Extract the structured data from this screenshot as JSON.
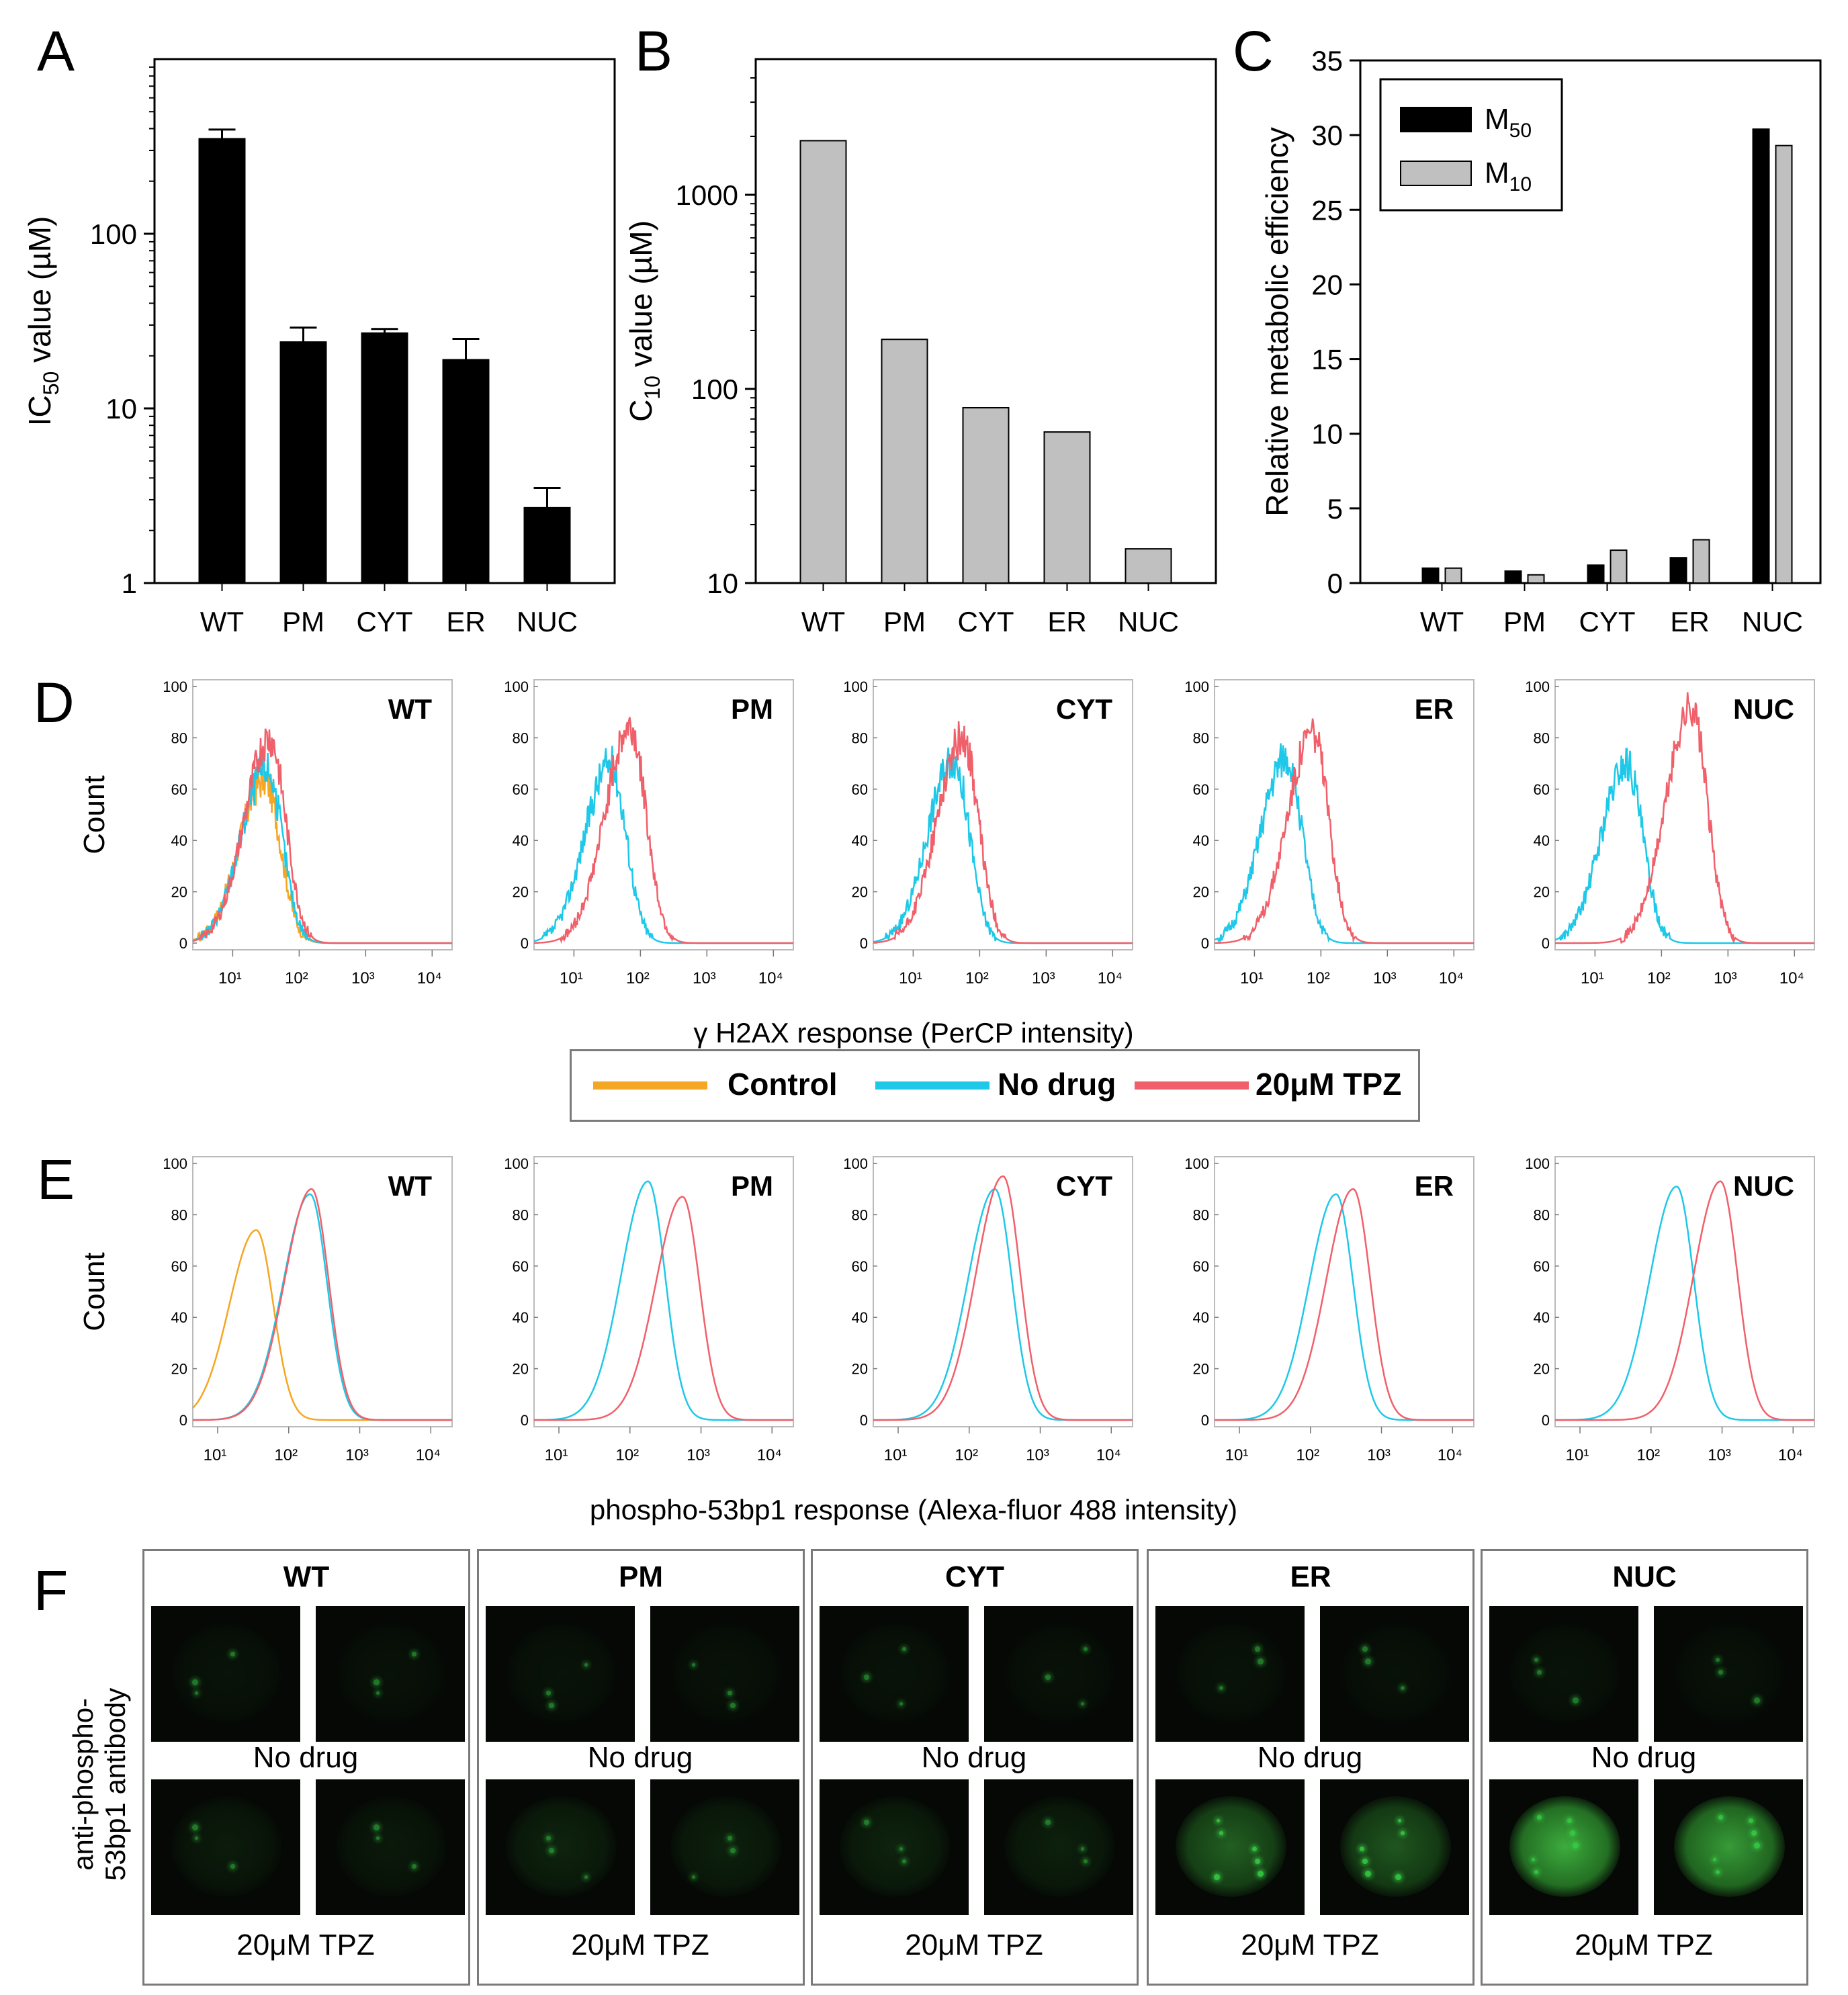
{
  "panel_letters": [
    "A",
    "B",
    "C",
    "D",
    "E",
    "F"
  ],
  "chart_data": [
    {
      "id": "A",
      "type": "bar",
      "ylog": true,
      "categories": [
        "WT",
        "PM",
        "CYT",
        "ER",
        "NUC"
      ],
      "values": [
        350,
        24,
        27,
        19,
        2.7
      ],
      "errors": [
        45,
        5,
        1.5,
        6,
        0.8
      ],
      "ylabel": "IC50 value (µM)",
      "ylim": [
        1,
        1000
      ],
      "yticks": [
        1,
        10,
        100
      ],
      "ytick_labels": [
        "1",
        "10",
        "100"
      ],
      "bar_color": "#000000"
    },
    {
      "id": "B",
      "type": "bar",
      "ylog": true,
      "categories": [
        "WT",
        "PM",
        "CYT",
        "ER",
        "NUC"
      ],
      "values": [
        1900,
        180,
        80,
        60,
        15
      ],
      "ylabel": "C10 value (µM)",
      "ylim": [
        10,
        5000
      ],
      "yticks": [
        10,
        100,
        1000
      ],
      "ytick_labels": [
        "10",
        "100",
        "1000"
      ],
      "bar_color": "#c0c0c0"
    },
    {
      "id": "C",
      "type": "bar",
      "categories": [
        "WT",
        "PM",
        "CYT",
        "ER",
        "NUC"
      ],
      "series": [
        {
          "name": "M50",
          "color": "#000000",
          "values": [
            1.0,
            0.8,
            1.2,
            1.7,
            30.4
          ]
        },
        {
          "name": "M10",
          "color": "#c0c0c0",
          "values": [
            1.0,
            0.55,
            2.2,
            2.9,
            29.3
          ]
        }
      ],
      "ylabel": "Relative metabolic efficiency",
      "ylim": [
        0,
        35
      ],
      "yticks": [
        0,
        5,
        10,
        15,
        20,
        25,
        30,
        35
      ],
      "ytick_labels": [
        "0",
        "5",
        "10",
        "15",
        "20",
        "25",
        "30",
        "35"
      ],
      "legend_position": "top-left"
    },
    {
      "id": "D",
      "type": "line",
      "xlog": true,
      "xlabel": "γ H2AX response (PerCP intensity)",
      "ylabel": "Count",
      "panels": [
        "WT",
        "PM",
        "CYT",
        "ER",
        "NUC"
      ],
      "ylim": [
        0,
        100
      ],
      "yticks": [
        0,
        20,
        40,
        60,
        80,
        100
      ],
      "xticks": [
        "10¹",
        "10²",
        "10³",
        "10⁴"
      ],
      "series": [
        {
          "name": "Control",
          "color": "#f5a623",
          "panels": [
            "WT"
          ],
          "peaks": [
            {
              "x": 30,
              "height": 64
            }
          ]
        },
        {
          "name": "No drug",
          "color": "#1ec8e8",
          "peaks": [
            {
              "x": 32,
              "height": 68
            },
            {
              "x": 35,
              "height": 70
            },
            {
              "x": 40,
              "height": 72
            },
            {
              "x": 30,
              "height": 72
            },
            {
              "x": 30,
              "height": 70
            }
          ]
        },
        {
          "name": "20μM TPZ",
          "color": "#f0606a",
          "peaks": [
            {
              "x": 36,
              "height": 80
            },
            {
              "x": 70,
              "height": 84
            },
            {
              "x": 55,
              "height": 80
            },
            {
              "x": 75,
              "height": 82
            },
            {
              "x": 280,
              "height": 92
            }
          ]
        }
      ]
    },
    {
      "id": "E",
      "type": "line",
      "xlog": true,
      "xlabel": "phospho-53bp1 response (Alexa-fluor 488 intensity)",
      "ylabel": "Count",
      "panels": [
        "WT",
        "PM",
        "CYT",
        "ER",
        "NUC"
      ],
      "ylim": [
        0,
        100
      ],
      "yticks": [
        0,
        20,
        40,
        60,
        80,
        100
      ],
      "xticks": [
        "10¹",
        "10²",
        "10³",
        "10⁴"
      ],
      "series": [
        {
          "name": "Control",
          "color": "#f5a623",
          "panels": [
            "WT"
          ],
          "peaks": [
            {
              "x": 35,
              "height": 74
            }
          ]
        },
        {
          "name": "No drug",
          "color": "#1ec8e8",
          "peaks": [
            {
              "x": 200,
              "height": 88
            },
            {
              "x": 180,
              "height": 93
            },
            {
              "x": 230,
              "height": 90
            },
            {
              "x": 230,
              "height": 88
            },
            {
              "x": 230,
              "height": 91
            }
          ]
        },
        {
          "name": "20μM TPZ",
          "color": "#f0606a",
          "peaks": [
            {
              "x": 210,
              "height": 90
            },
            {
              "x": 550,
              "height": 87
            },
            {
              "x": 300,
              "height": 95
            },
            {
              "x": 400,
              "height": 90
            },
            {
              "x": 950,
              "height": 93
            }
          ]
        }
      ]
    }
  ],
  "legend": [
    {
      "label": "Control",
      "color": "#f5a623"
    },
    {
      "label": "No drug",
      "color": "#1ec8e8"
    },
    {
      "label": "20μM TPZ",
      "color": "#f0606a"
    }
  ],
  "imaging": {
    "side_label_line1": "anti-phospho-",
    "side_label_line2": "53bp1 antibody",
    "panels": [
      {
        "title": "WT",
        "row1_label": "No drug",
        "row2_label": "20μM TPZ"
      },
      {
        "title": "PM",
        "row1_label": "No drug",
        "row2_label": "20μM TPZ"
      },
      {
        "title": "CYT",
        "row1_label": "No drug",
        "row2_label": "20μM TPZ"
      },
      {
        "title": "ER",
        "row1_label": "No drug",
        "row2_label": "20μM TPZ"
      },
      {
        "title": "NUC",
        "row1_label": "No drug",
        "row2_label": "20μM TPZ"
      }
    ]
  }
}
